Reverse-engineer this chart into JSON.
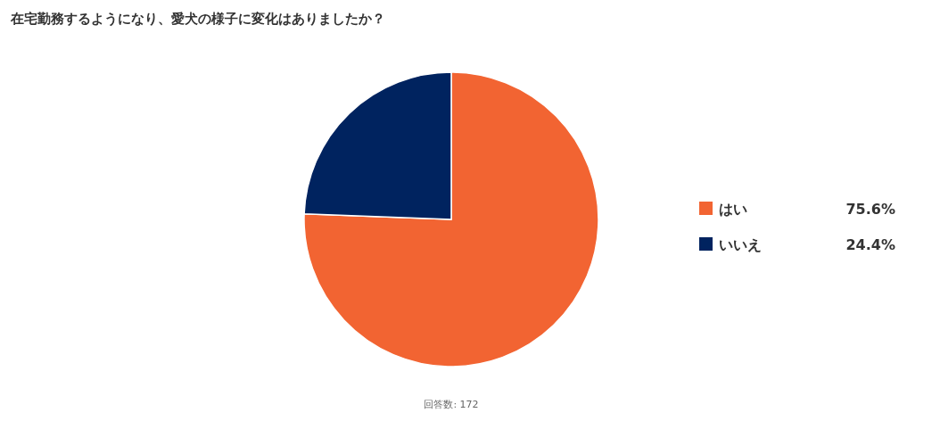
{
  "chart_data": {
    "type": "pie",
    "title": "在宅勤務するようになり、愛犬の様子に変化はありましたか？",
    "categories": [
      "はい",
      "いいえ"
    ],
    "values": [
      75.6,
      24.4
    ],
    "value_labels": [
      "75.6%",
      "24.4%"
    ],
    "colors": [
      "#f26432",
      "#00235f"
    ],
    "legend": "right",
    "annotations": [
      "回答数: 172"
    ]
  }
}
